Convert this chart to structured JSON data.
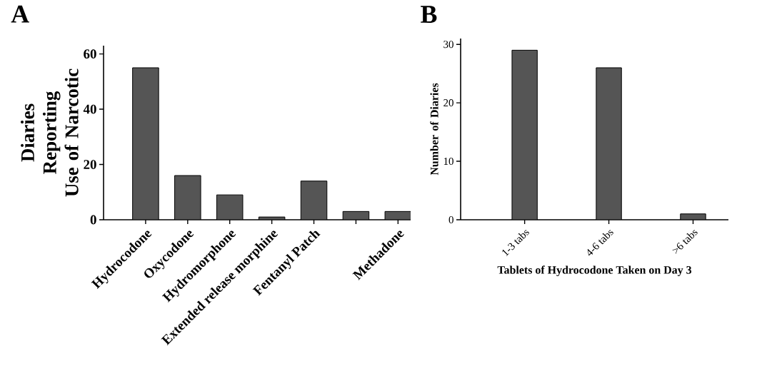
{
  "chart_data": [
    {
      "type": "bar",
      "title": "A",
      "ylabel": "Diaries Reporting Use of Narcotic",
      "categories": [
        "Hydrocodone",
        "Oxycodone",
        "Hydromorphone",
        "Extended release morphine",
        "Fentanyl Patch",
        null,
        "Methadone"
      ],
      "values": [
        55,
        16,
        9,
        1,
        14,
        3,
        3
      ],
      "color": "#555555",
      "ylim": [
        0,
        63
      ],
      "yticks": [
        0,
        20,
        40,
        60
      ]
    },
    {
      "type": "bar",
      "title": "B",
      "ylabel": "Number of Diaries",
      "xlabel": "Tablets of Hydrocodone Taken on Day 3",
      "categories": [
        "1-3 tabs",
        "4-6 tabs",
        ">6 tabs"
      ],
      "values": [
        29,
        26,
        1
      ],
      "color": "#555555",
      "ylim": [
        0,
        31
      ],
      "yticks": [
        0,
        10,
        20,
        30
      ]
    }
  ]
}
